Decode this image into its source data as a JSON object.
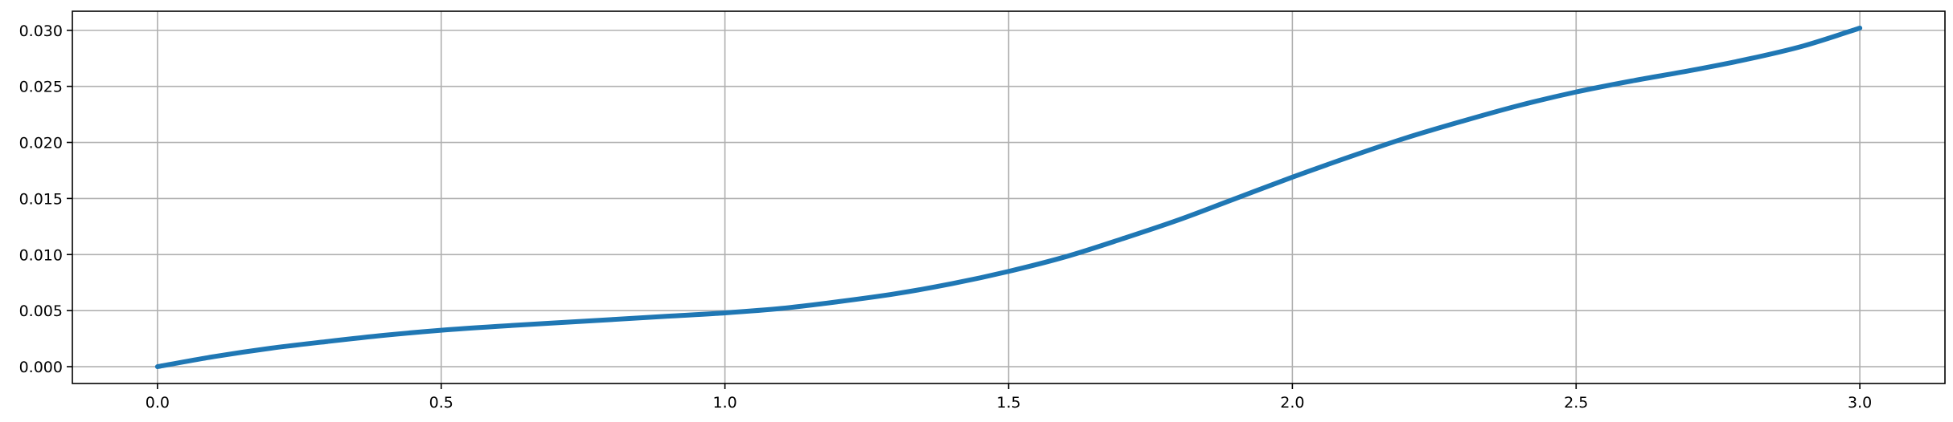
{
  "chart_data": {
    "type": "line",
    "title": "",
    "xlabel": "",
    "ylabel": "",
    "xlim": [
      -0.15,
      3.15
    ],
    "ylim": [
      -0.0015,
      0.0317
    ],
    "grid": true,
    "legend": "none",
    "x_ticks": [
      {
        "value": 0.0,
        "label": "0.0"
      },
      {
        "value": 0.5,
        "label": "0.5"
      },
      {
        "value": 1.0,
        "label": "1.0"
      },
      {
        "value": 1.5,
        "label": "1.5"
      },
      {
        "value": 2.0,
        "label": "2.0"
      },
      {
        "value": 2.5,
        "label": "2.5"
      },
      {
        "value": 3.0,
        "label": "3.0"
      }
    ],
    "y_ticks": [
      {
        "value": 0.0,
        "label": "0.000"
      },
      {
        "value": 0.005,
        "label": "0.005"
      },
      {
        "value": 0.01,
        "label": "0.010"
      },
      {
        "value": 0.015,
        "label": "0.015"
      },
      {
        "value": 0.02,
        "label": "0.020"
      },
      {
        "value": 0.025,
        "label": "0.025"
      },
      {
        "value": 0.03,
        "label": "0.030"
      }
    ],
    "series": [
      {
        "color": "#1f77b4",
        "points": [
          [
            0.0,
            0.0
          ],
          [
            0.1,
            0.0009
          ],
          [
            0.2,
            0.00165
          ],
          [
            0.3,
            0.00225
          ],
          [
            0.4,
            0.0028
          ],
          [
            0.5,
            0.00325
          ],
          [
            0.6,
            0.0036
          ],
          [
            0.7,
            0.0039
          ],
          [
            0.8,
            0.0042
          ],
          [
            0.9,
            0.0045
          ],
          [
            1.0,
            0.0048
          ],
          [
            1.1,
            0.0052
          ],
          [
            1.2,
            0.0058
          ],
          [
            1.3,
            0.0065
          ],
          [
            1.4,
            0.0074
          ],
          [
            1.5,
            0.0085
          ],
          [
            1.6,
            0.0098
          ],
          [
            1.7,
            0.0114
          ],
          [
            1.8,
            0.0131
          ],
          [
            1.9,
            0.015
          ],
          [
            2.0,
            0.0169
          ],
          [
            2.1,
            0.0187
          ],
          [
            2.2,
            0.0204
          ],
          [
            2.3,
            0.0219
          ],
          [
            2.4,
            0.0233
          ],
          [
            2.5,
            0.0245
          ],
          [
            2.6,
            0.0255
          ],
          [
            2.7,
            0.0264
          ],
          [
            2.8,
            0.0274
          ],
          [
            2.9,
            0.0286
          ],
          [
            3.0,
            0.0302
          ]
        ]
      }
    ]
  }
}
